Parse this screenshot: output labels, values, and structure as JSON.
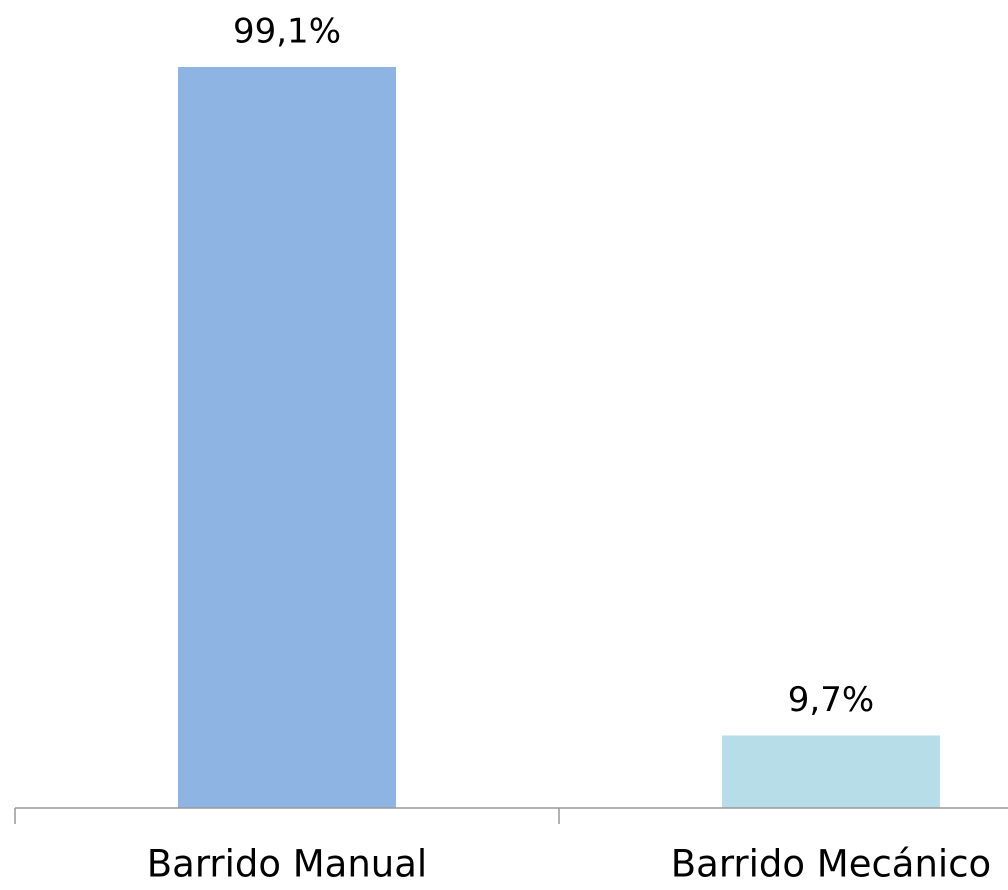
{
  "chart_data": {
    "type": "bar",
    "categories": [
      "Barrido Manual",
      "Barrido Mecánico"
    ],
    "values": [
      99.1,
      9.7
    ],
    "value_labels": [
      "99,1%",
      "9,7%"
    ],
    "colors": [
      "#8eb4e3",
      "#b7dde8"
    ]
  }
}
